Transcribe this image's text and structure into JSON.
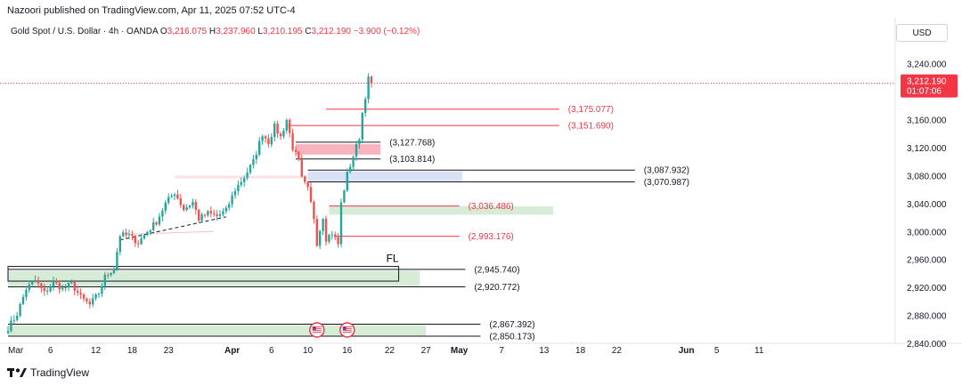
{
  "header": {
    "credit": "Nazoori published on TradingView.com, Apr 11, 2025 07:52 UTC-4",
    "symbol": "Gold Spot / U.S. Dollar · 4h · OANDA",
    "ohlc": [
      {
        "label": "O",
        "value": "3,216.075"
      },
      {
        "label": "H",
        "value": "3,237.960"
      },
      {
        "label": "L",
        "value": "3,210.195"
      },
      {
        "label": "C",
        "value": "3,212.190"
      }
    ],
    "change": "−3.900 (−0.12%)",
    "currency": "USD"
  },
  "footer": {
    "brand": "TradingView"
  },
  "colors": {
    "bull": "#26a69a",
    "bear": "#ef5350",
    "red_line": "#f23645",
    "black_line": "#131722",
    "supply_zone": "#f4a3ae",
    "demand_zone": "#c8e6c9",
    "blue_zone": "#d4dcf4",
    "pink_zone": "#fde2e4"
  },
  "chart_data": {
    "type": "candlestick",
    "timeframe": "4h",
    "ylim": [
      2840,
      3260
    ],
    "y_ticks": [
      2840,
      2880,
      2920,
      2960,
      3000,
      3040,
      3080,
      3120,
      3160,
      3200,
      3240
    ],
    "y_tick_labels": [
      "2,840.000",
      "2,880.000",
      "2,920.000",
      "2,960.000",
      "3,000.000",
      "3,040.000",
      "3,080.000",
      "3,120.000",
      "3,160.000",
      "3,200.000",
      "3,240.000"
    ],
    "x_ticks": [
      "Mar",
      "6",
      "12",
      "18",
      "23",
      "Apr",
      "6",
      "10",
      "16",
      "22",
      "27",
      "May",
      "7",
      "13",
      "18",
      "22",
      "Jun",
      "5",
      "11"
    ],
    "x_bold_ticks": [
      "Apr",
      "May",
      "Jun"
    ],
    "last_price": {
      "value": 3212.19,
      "label": "3,212.190",
      "countdown": "01:07:06"
    },
    "price_path": [
      [
        0,
        2862
      ],
      [
        3,
        2882
      ],
      [
        6,
        2918
      ],
      [
        9,
        2930
      ],
      [
        12,
        2912
      ],
      [
        15,
        2928
      ],
      [
        18,
        2918
      ],
      [
        21,
        2925
      ],
      [
        24,
        2906
      ],
      [
        27,
        2895
      ],
      [
        30,
        2912
      ],
      [
        32,
        2935
      ],
      [
        35,
        2948
      ],
      [
        37,
        2995
      ],
      [
        40,
        2994
      ],
      [
        43,
        2984
      ],
      [
        46,
        3000
      ],
      [
        49,
        3014
      ],
      [
        52,
        3040
      ],
      [
        55,
        3056
      ],
      [
        58,
        3032
      ],
      [
        61,
        3042
      ],
      [
        63,
        3018
      ],
      [
        66,
        3026
      ],
      [
        69,
        3022
      ],
      [
        72,
        3030
      ],
      [
        75,
        3060
      ],
      [
        78,
        3078
      ],
      [
        81,
        3100
      ],
      [
        84,
        3140
      ],
      [
        86,
        3128
      ],
      [
        88,
        3150
      ],
      [
        90,
        3135
      ],
      [
        92,
        3160
      ],
      [
        94,
        3120
      ],
      [
        96,
        3100
      ],
      [
        97,
        3075
      ],
      [
        99,
        3060
      ],
      [
        101,
        3020
      ],
      [
        102,
        2984
      ],
      [
        104,
        3022
      ],
      [
        105,
        2990
      ],
      [
        107,
        2998
      ],
      [
        109,
        2982
      ],
      [
        110,
        3040
      ],
      [
        112,
        3082
      ],
      [
        114,
        3108
      ],
      [
        116,
        3135
      ],
      [
        117,
        3170
      ],
      [
        119,
        3218
      ],
      [
        120,
        3212
      ]
    ],
    "levels": [
      {
        "value": 3175.077,
        "label": "(3,175.077)",
        "style": "red",
        "x_range": [
          105,
          182
        ]
      },
      {
        "value": 3151.69,
        "label": "(3,151.690)",
        "style": "red",
        "x_range": [
          92,
          182
        ]
      },
      {
        "value": 3127.768,
        "label": "(3,127.768)",
        "style": "black",
        "x_range": [
          95,
          123
        ]
      },
      {
        "value": 3103.814,
        "label": "(3,103.814)",
        "style": "black",
        "x_range": [
          95,
          123
        ]
      },
      {
        "value": 3087.932,
        "label": "(3,087.932)",
        "style": "black",
        "x_range": [
          99,
          207
        ]
      },
      {
        "value": 3070.987,
        "label": "(3,070.987)",
        "style": "black",
        "x_range": [
          99,
          207
        ]
      },
      {
        "value": 3036.486,
        "label": "(3,036.486)",
        "style": "red",
        "x_range": [
          106,
          149
        ]
      },
      {
        "value": 2993.176,
        "label": "(2,993.176)",
        "style": "red",
        "x_range": [
          108,
          149
        ]
      },
      {
        "value": 2945.74,
        "label": "(2,945.740)",
        "style": "black",
        "x_range": [
          0,
          151
        ]
      },
      {
        "value": 2920.772,
        "label": "(2,920.772)",
        "style": "black",
        "x_range": [
          0,
          151
        ]
      },
      {
        "value": 2867.392,
        "label": "(2,867.392)",
        "style": "black",
        "x_range": [
          0,
          156
        ]
      },
      {
        "value": 2850.173,
        "label": "(2,850.173)",
        "style": "black",
        "x_range": [
          0,
          156
        ]
      }
    ],
    "zones": [
      {
        "kind": "supply",
        "y_range": [
          3110,
          3125
        ],
        "x_range": [
          95,
          123
        ]
      },
      {
        "kind": "blue",
        "y_range": [
          3072,
          3086
        ],
        "x_range": [
          99,
          150
        ]
      },
      {
        "kind": "pink",
        "y_range": [
          3076,
          3080
        ],
        "x_range": [
          55,
          99
        ]
      },
      {
        "kind": "demand",
        "y_range": [
          3024,
          3036
        ],
        "x_range": [
          106,
          180
        ]
      },
      {
        "kind": "demand",
        "y_range": [
          2922,
          2944
        ],
        "x_range": [
          0,
          136
        ]
      },
      {
        "kind": "demand",
        "y_range": [
          2850,
          2866
        ],
        "x_range": [
          0,
          138
        ]
      }
    ],
    "fl_box": {
      "label": "FL",
      "y_range": [
        2929,
        2950
      ],
      "x_range": [
        0,
        129
      ]
    },
    "trendlines": [
      {
        "from": [
          37,
          2988
        ],
        "to": [
          72,
          3021
        ]
      },
      {
        "from": [
          39,
          2996
        ],
        "to": [
          68,
          3000
        ]
      }
    ],
    "events": [
      {
        "x": 102,
        "icon": "us-flag-icon"
      },
      {
        "x": 112,
        "icon": "us-flag-icon"
      }
    ],
    "x_tick_positions": [
      0,
      14,
      29,
      41,
      53,
      74,
      87,
      99,
      112,
      126,
      138,
      149,
      163,
      177,
      189,
      201,
      224,
      234,
      248
    ]
  }
}
